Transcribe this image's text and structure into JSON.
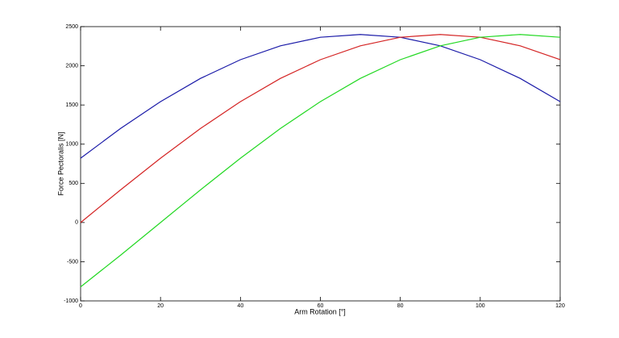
{
  "chart_data": {
    "type": "line",
    "x_label": "Arm Rotation [°]",
    "y_label": "Force Pectoralis [N]",
    "x": [
      0,
      10,
      20,
      30,
      40,
      50,
      60,
      70,
      80,
      90,
      100,
      110,
      120
    ],
    "series": [
      {
        "color": "#1a1aa8",
        "values": [
          821,
          1200,
          1543,
          1839,
          2078,
          2255,
          2364,
          2400,
          2364,
          2255,
          2078,
          1839,
          1543
        ]
      },
      {
        "color": "#d42424",
        "values": [
          0,
          417,
          821,
          1200,
          1543,
          1839,
          2078,
          2255,
          2364,
          2400,
          2364,
          2255,
          2078
        ]
      },
      {
        "color": "#22d822",
        "values": [
          -821,
          -417,
          0,
          417,
          821,
          1200,
          1543,
          1839,
          2078,
          2255,
          2364,
          2400,
          2364
        ]
      }
    ],
    "xlim": [
      0,
      120
    ],
    "xticks": [
      0,
      20,
      40,
      60,
      80,
      100,
      120
    ],
    "ylim": [
      -1000,
      2500
    ],
    "yticks": [
      -1000,
      -500,
      0,
      500,
      1000,
      1500,
      2000,
      2500
    ]
  }
}
